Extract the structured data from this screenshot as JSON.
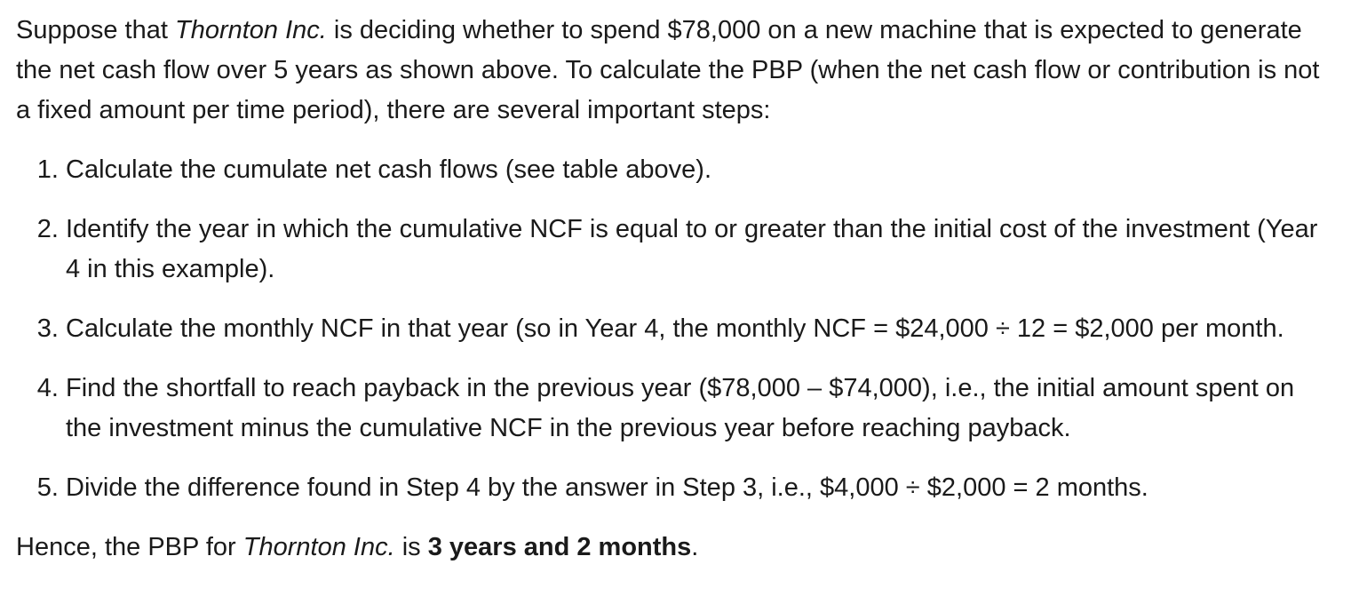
{
  "intro": {
    "part1": "Suppose that ",
    "company": "Thornton Inc.",
    "part2": " is deciding whether to spend $78,000 on a new machine that is expected to generate the net cash flow over 5 years as shown above. To calculate the PBP (when the net cash flow or contribution is not a fixed amount per time period), there are several important steps:"
  },
  "steps": [
    "Calculate the cumulate net cash flows (see table above).",
    "Identify the year in which the cumulative NCF is equal to or greater than the initial cost of the investment (Year 4 in this example).",
    "Calculate the monthly NCF in that year (so in Year 4, the monthly NCF = $24,000 ÷ 12 = $2,000 per month.",
    "Find the shortfall to reach payback in the previous year ($78,000 – $74,000), i.e., the initial amount spent on the investment minus the cumulative NCF in the previous year before reaching payback.",
    "Divide the difference found in Step 4 by the answer in Step 3, i.e., $4,000 ÷ $2,000 = 2 months."
  ],
  "conclusion": {
    "part1": "Hence, the PBP for ",
    "company": "Thornton Inc.",
    "part2": " is ",
    "result": "3 years and 2 months",
    "part3": "."
  }
}
